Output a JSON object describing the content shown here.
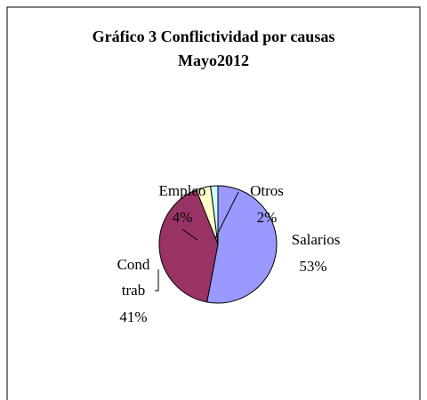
{
  "chart_data": {
    "type": "pie",
    "title": "Gráfico 3 Conflictividad por causas",
    "subtitle": "Mayo2012",
    "categories": [
      "Salarios",
      "Cond trab",
      "Empleo",
      "Otros"
    ],
    "values": [
      53,
      41,
      4,
      2
    ],
    "value_labels": [
      "53%",
      "41%",
      "4%",
      "2%"
    ],
    "colors": [
      "#9999ff",
      "#993366",
      "#ffffcc",
      "#ccffff"
    ]
  }
}
